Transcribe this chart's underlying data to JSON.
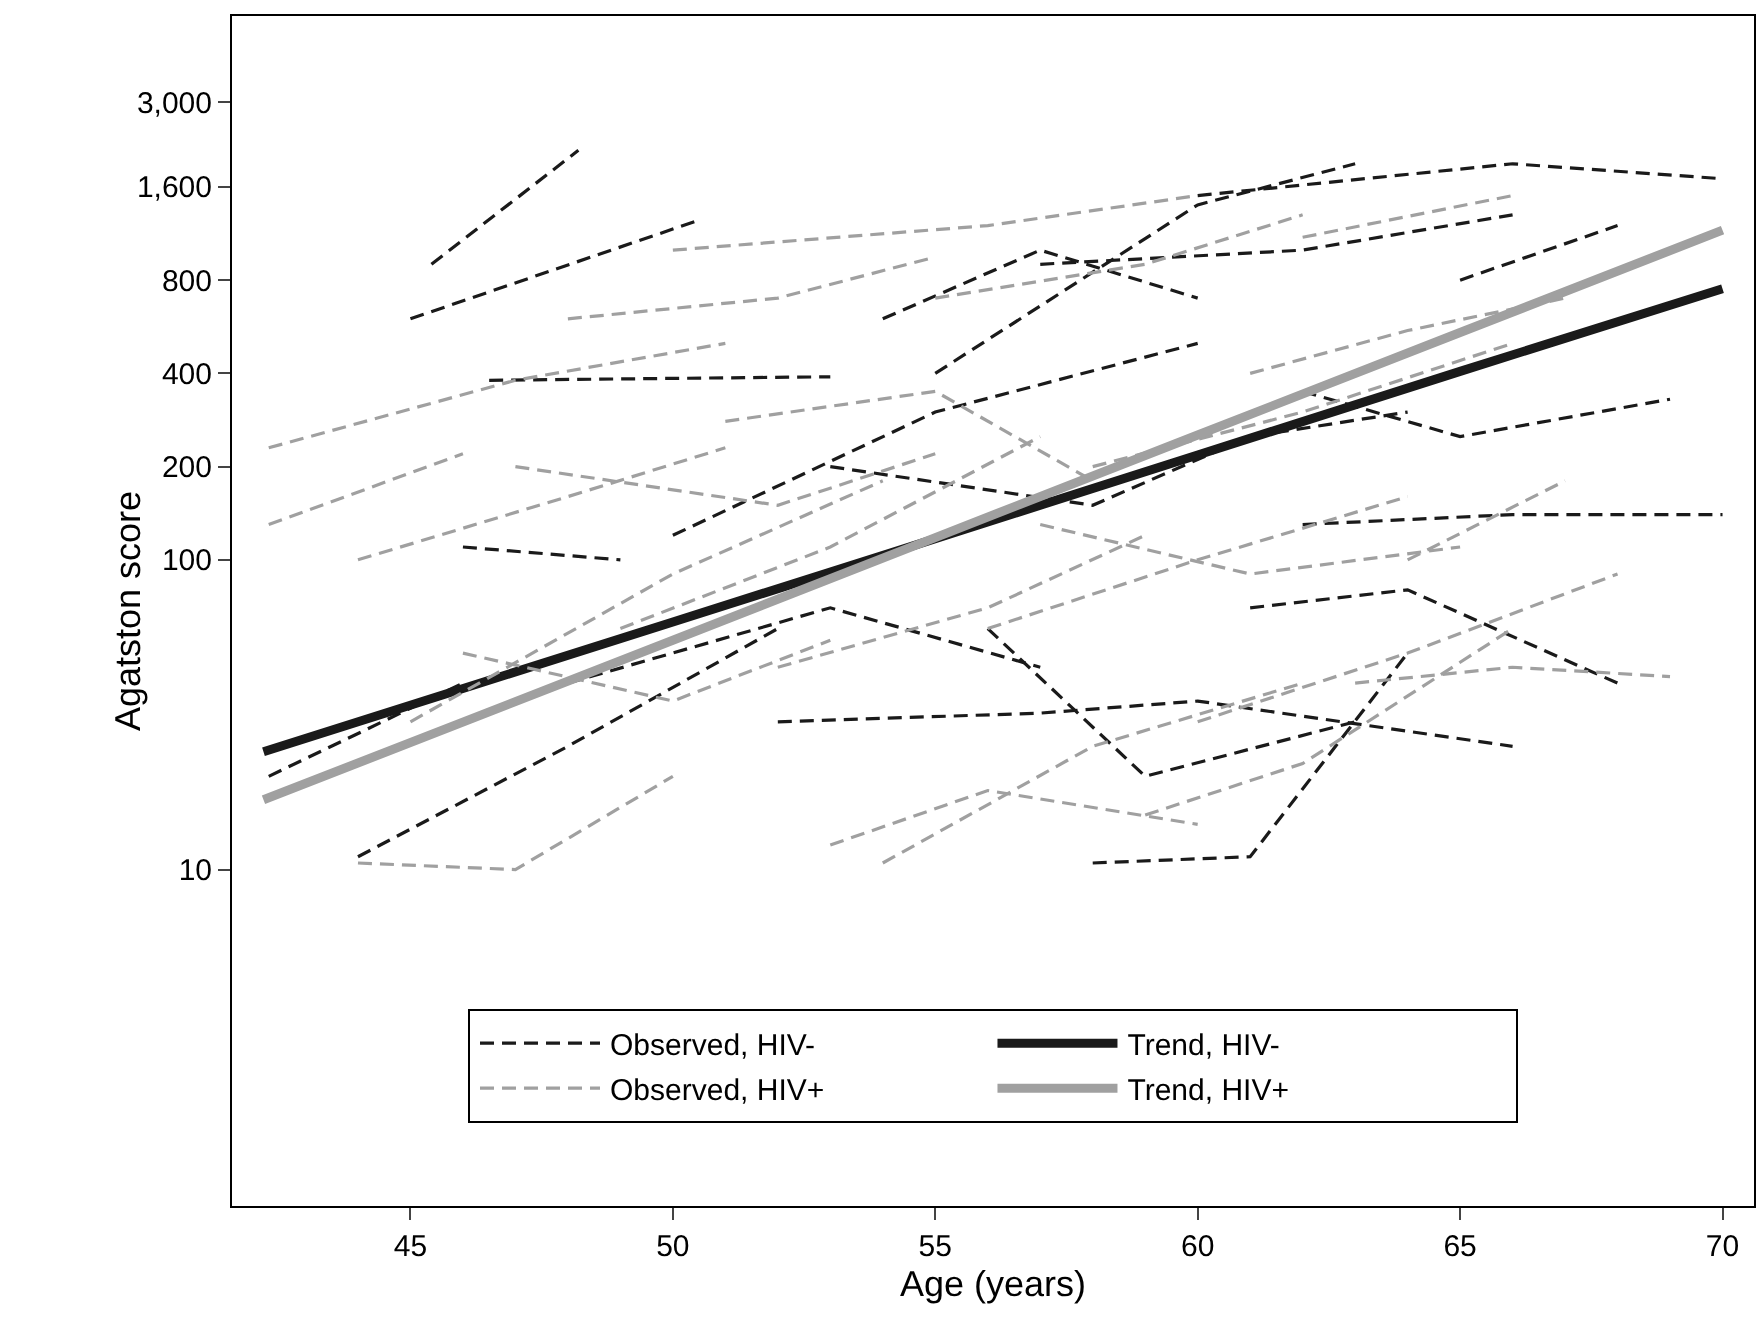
{
  "chart_data": {
    "type": "line",
    "xlabel": "Age (years)",
    "ylabel": "Agatston score",
    "log": "y",
    "grid": false,
    "legend": "bottom",
    "marker": "none",
    "xlim": [
      41.6,
      70.6
    ],
    "xticks": [
      45,
      50,
      55,
      60,
      65,
      70
    ],
    "ylim": [
      0.82,
      5700
    ],
    "yticks": [
      10,
      100,
      200,
      400,
      800,
      {
        "value": 1600,
        "label": "1,600"
      },
      {
        "value": 3000,
        "label": "3,000"
      }
    ],
    "series": [
      {
        "name": "Observed, HIV-",
        "color": "#1a1a1a",
        "line_style": "dashed",
        "x": [
          45.4,
          48.2,
          null,
          45,
          50.5,
          null,
          46.5,
          53,
          null,
          46,
          49,
          null,
          44,
          48,
          52,
          null,
          52,
          57,
          60,
          66,
          null,
          55,
          60,
          63,
          null,
          60,
          66,
          70,
          null,
          57,
          62,
          66,
          null,
          58,
          61,
          64,
          null,
          62,
          66,
          70,
          null,
          61,
          64,
          68,
          null,
          50,
          55,
          60,
          null,
          53,
          58,
          61,
          64,
          null,
          48,
          53,
          57,
          null,
          42.3,
          46,
          null,
          62,
          65,
          69,
          null,
          56,
          59,
          63,
          null,
          54,
          57,
          60,
          null,
          65,
          68
        ],
        "values": [
          900,
          2100,
          null,
          600,
          1250,
          null,
          380,
          390,
          null,
          110,
          100,
          null,
          11,
          25,
          60,
          null,
          30,
          32,
          35,
          25,
          null,
          400,
          1400,
          1900,
          null,
          1500,
          1900,
          1700,
          null,
          900,
          1000,
          1300,
          null,
          10.5,
          11,
          50,
          null,
          130,
          140,
          140,
          null,
          70,
          80,
          40,
          null,
          120,
          300,
          500,
          null,
          200,
          150,
          250,
          300,
          null,
          40,
          70,
          45,
          null,
          20,
          40,
          null,
          350,
          250,
          330,
          null,
          60,
          20,
          30,
          null,
          600,
          1000,
          700,
          null,
          800,
          1200
        ]
      },
      {
        "name": "Trend, HIV-",
        "color": "#1a1a1a",
        "line_style": "solid",
        "x": [
          42.2,
          50,
          55,
          60,
          65,
          70
        ],
        "values": [
          24,
          63,
          117,
          218,
          406,
          750
        ]
      },
      {
        "name": "Observed, HIV+",
        "color": "#a0a0a0",
        "line_style": "dashed",
        "x": [
          42.3,
          47,
          51,
          null,
          42.3,
          46,
          null,
          44,
          47,
          50,
          null,
          45,
          50,
          54,
          null,
          48,
          52,
          55,
          null,
          50,
          56,
          60,
          null,
          53,
          56,
          60,
          null,
          54,
          58,
          62,
          null,
          56,
          60,
          64,
          null,
          58,
          62,
          66,
          null,
          60,
          64,
          68,
          null,
          63,
          66,
          69,
          null,
          47,
          52,
          55,
          null,
          49,
          53,
          57,
          null,
          55,
          59,
          62,
          null,
          61,
          64,
          67,
          null,
          46,
          50,
          53,
          null,
          51,
          55,
          58,
          null,
          57,
          61,
          65,
          null,
          64,
          67,
          null,
          44,
          48,
          51,
          null,
          52,
          56,
          59,
          null,
          59,
          62,
          66,
          null,
          62,
          66
        ],
        "values": [
          230,
          380,
          500,
          null,
          130,
          220,
          null,
          10.5,
          10,
          20,
          null,
          30,
          90,
          180,
          null,
          600,
          700,
          950,
          null,
          1000,
          1200,
          1500,
          null,
          12,
          18,
          14,
          null,
          10.5,
          25,
          40,
          null,
          60,
          100,
          160,
          null,
          200,
          300,
          500,
          null,
          30,
          50,
          90,
          null,
          40,
          45,
          42,
          null,
          200,
          150,
          220,
          null,
          60,
          110,
          250,
          null,
          700,
          900,
          1300,
          null,
          400,
          550,
          700,
          null,
          50,
          35,
          55,
          null,
          280,
          350,
          180,
          null,
          130,
          90,
          110,
          null,
          100,
          180,
          null,
          100,
          160,
          230,
          null,
          45,
          70,
          120,
          null,
          15,
          22,
          60,
          null,
          1100,
          1500
        ]
      },
      {
        "name": "Trend, HIV+",
        "color": "#a0a0a0",
        "line_style": "solid",
        "x": [
          42.2,
          50,
          55,
          60,
          65,
          70
        ],
        "values": [
          16.8,
          55,
          118,
          253,
          542,
          1160
        ]
      }
    ]
  }
}
